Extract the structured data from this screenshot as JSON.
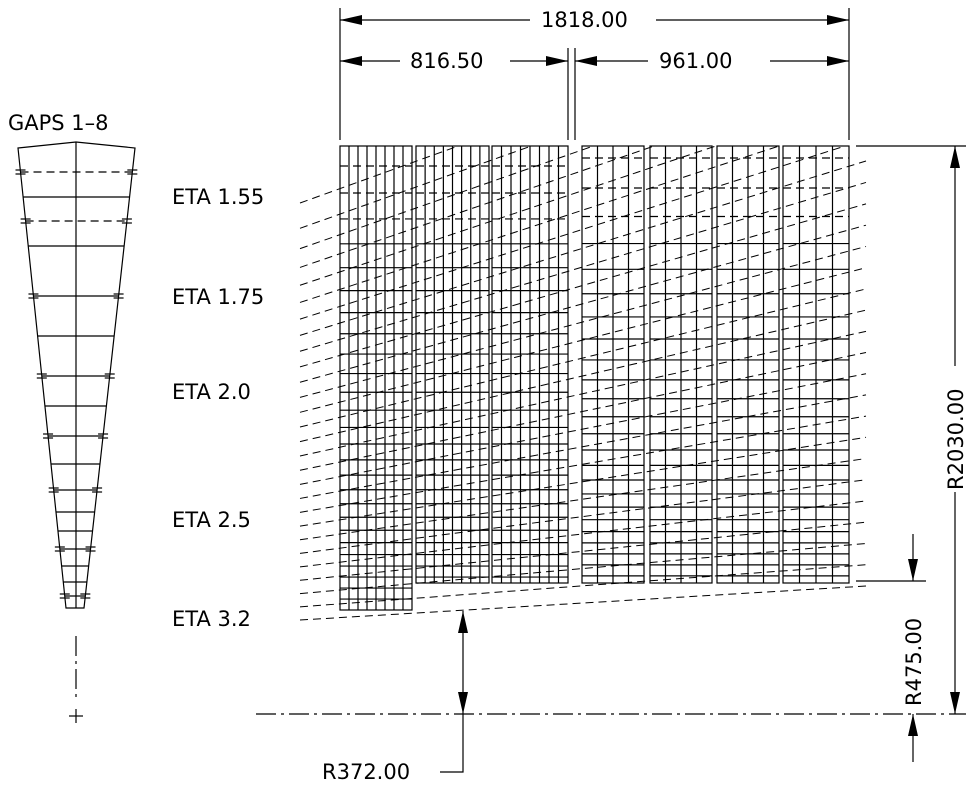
{
  "left_panel": {
    "title": "GAPS 1–8"
  },
  "eta_labels": [
    "ETA 1.55",
    "ETA 1.75",
    "ETA 2.0",
    "ETA 2.5",
    "ETA 3.2"
  ],
  "dimensions": {
    "total_length": "1818.00",
    "section_1_length": "816.50",
    "section_2_length": "961.00",
    "outer_radius": "R2030.00",
    "inner_radius_section_2": "R475.00",
    "inner_radius_section_1": "R372.00"
  }
}
